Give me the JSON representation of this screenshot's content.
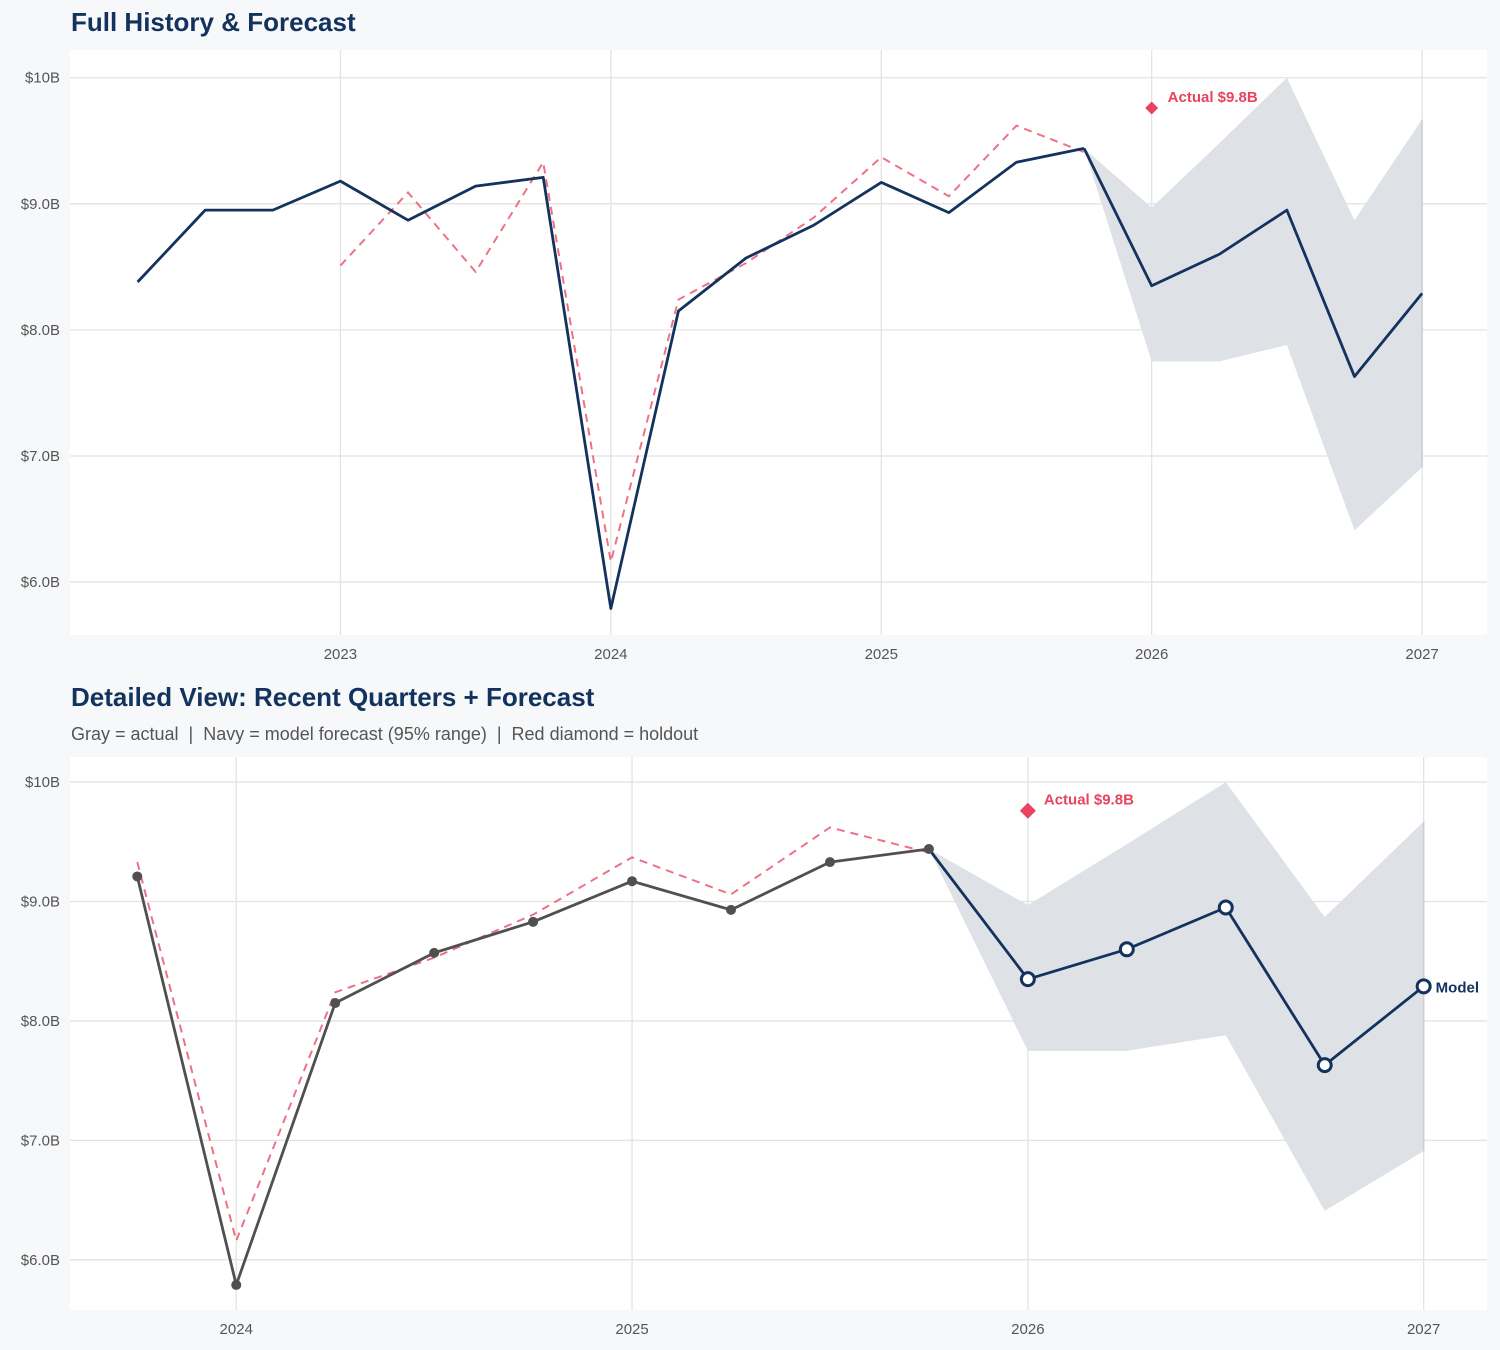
{
  "colors": {
    "navy": "#13335e",
    "red": "#e8435f",
    "band": "#dce0e6",
    "actual_gray": "#505050",
    "grid": "#e3e3e3",
    "background": "#f7f8fa"
  },
  "chart_data": [
    {
      "type": "line",
      "title": "Full History & Forecast",
      "xlim": [
        2022.0,
        2027.24
      ],
      "ylim": [
        5.58,
        10.22
      ],
      "grid": true,
      "x_ticks": [
        {
          "value": 2023,
          "label": "2023"
        },
        {
          "value": 2024,
          "label": "2024"
        },
        {
          "value": 2025,
          "label": "2025"
        },
        {
          "value": 2026,
          "label": "2026"
        },
        {
          "value": 2027,
          "label": "2027"
        }
      ],
      "y_ticks": [
        {
          "value": 6,
          "label": "$6.0B"
        },
        {
          "value": 7,
          "label": "$7.0B"
        },
        {
          "value": 8,
          "label": "$8.0B"
        },
        {
          "value": 9,
          "label": "$9.0B"
        },
        {
          "value": 10,
          "label": "$10B"
        }
      ],
      "actual": {
        "x": [
          2022.25,
          2022.5,
          2022.75,
          2023.0,
          2023.25,
          2023.5,
          2023.75,
          2024.0,
          2024.25,
          2024.5,
          2024.75,
          2025.0,
          2025.25,
          2025.5,
          2025.75
        ],
        "y": [
          8.38,
          8.95,
          8.95,
          9.18,
          8.87,
          9.14,
          9.21,
          5.79,
          8.15,
          8.57,
          8.83,
          9.17,
          8.93,
          9.33,
          9.44
        ]
      },
      "fitted": {
        "x": [
          2023.0,
          2023.25,
          2023.5,
          2023.75,
          2024.0,
          2024.25,
          2024.5,
          2024.75,
          2025.0,
          2025.25,
          2025.5,
          2025.75
        ],
        "y": [
          8.51,
          9.09,
          8.46,
          9.33,
          6.16,
          8.24,
          8.53,
          8.89,
          9.37,
          9.06,
          9.62,
          9.41
        ]
      },
      "forecast": {
        "x": [
          2025.75,
          2026.0,
          2026.25,
          2026.5,
          2026.75,
          2027.0
        ],
        "y": [
          9.44,
          8.35,
          8.6,
          8.95,
          7.63,
          8.29
        ],
        "upper": [
          9.44,
          8.97,
          9.48,
          10.0,
          8.87,
          9.67
        ],
        "lower": [
          9.44,
          7.75,
          7.75,
          7.88,
          6.41,
          6.91
        ]
      },
      "holdout": {
        "x": 2026.0,
        "y": 9.76,
        "label": "Actual $9.8B"
      },
      "markers": false
    },
    {
      "type": "line",
      "title": "Detailed View: Recent Quarters + Forecast",
      "subtitle": "Gray = actual  |  Navy = model forecast (95% range)  |  Red diamond = holdout",
      "xlim": [
        2023.58,
        2027.16
      ],
      "ylim": [
        5.58,
        10.21
      ],
      "grid": true,
      "x_ticks": [
        {
          "value": 2024,
          "label": "2024"
        },
        {
          "value": 2025,
          "label": "2025"
        },
        {
          "value": 2026,
          "label": "2026"
        },
        {
          "value": 2027,
          "label": "2027"
        }
      ],
      "y_ticks": [
        {
          "value": 6,
          "label": "$6.0B"
        },
        {
          "value": 7,
          "label": "$7.0B"
        },
        {
          "value": 8,
          "label": "$8.0B"
        },
        {
          "value": 9,
          "label": "$9.0B"
        },
        {
          "value": 10,
          "label": "$10B"
        }
      ],
      "actual": {
        "x": [
          2023.75,
          2024.0,
          2024.25,
          2024.5,
          2024.75,
          2025.0,
          2025.25,
          2025.5,
          2025.75
        ],
        "y": [
          9.21,
          5.79,
          8.15,
          8.57,
          8.83,
          9.17,
          8.93,
          9.33,
          9.44
        ]
      },
      "fitted": {
        "x": [
          2023.75,
          2024.0,
          2024.25,
          2024.5,
          2024.75,
          2025.0,
          2025.25,
          2025.5,
          2025.75
        ],
        "y": [
          9.33,
          6.16,
          8.24,
          8.53,
          8.89,
          9.37,
          9.06,
          9.62,
          9.41
        ]
      },
      "forecast": {
        "x": [
          2025.75,
          2026.0,
          2026.25,
          2026.5,
          2026.75,
          2027.0
        ],
        "y": [
          9.44,
          8.35,
          8.6,
          8.95,
          7.63,
          8.29
        ],
        "upper": [
          9.44,
          8.97,
          9.48,
          10.0,
          8.87,
          9.67
        ],
        "lower": [
          9.44,
          7.75,
          7.75,
          7.88,
          6.41,
          6.91
        ]
      },
      "holdout": {
        "x": 2026.0,
        "y": 9.76,
        "label": "Actual $9.8B"
      },
      "end_label": "Model",
      "markers": true
    }
  ]
}
